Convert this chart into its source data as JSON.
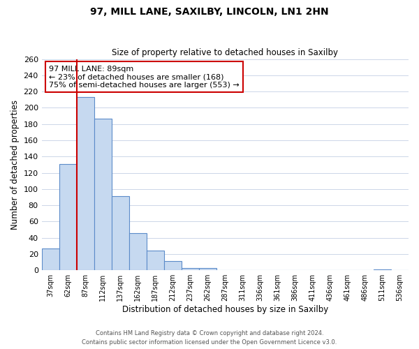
{
  "title": "97, MILL LANE, SAXILBY, LINCOLN, LN1 2HN",
  "subtitle": "Size of property relative to detached houses in Saxilby",
  "xlabel": "Distribution of detached houses by size in Saxilby",
  "ylabel": "Number of detached properties",
  "bin_labels": [
    "37sqm",
    "62sqm",
    "87sqm",
    "112sqm",
    "137sqm",
    "162sqm",
    "187sqm",
    "212sqm",
    "237sqm",
    "262sqm",
    "287sqm",
    "311sqm",
    "336sqm",
    "361sqm",
    "386sqm",
    "411sqm",
    "436sqm",
    "461sqm",
    "486sqm",
    "511sqm",
    "536sqm"
  ],
  "bar_values": [
    27,
    131,
    213,
    187,
    91,
    46,
    24,
    11,
    3,
    3,
    0,
    0,
    0,
    0,
    0,
    0,
    0,
    0,
    0,
    1,
    0
  ],
  "bar_color": "#c6d9f0",
  "bar_edge_color": "#5b8bc9",
  "vline_x": 1.5,
  "vline_color": "#cc0000",
  "annotation_text": "97 MILL LANE: 89sqm\n← 23% of detached houses are smaller (168)\n75% of semi-detached houses are larger (553) →",
  "annotation_box_edgecolor": "#cc0000",
  "annotation_box_facecolor": "white",
  "ylim": [
    0,
    260
  ],
  "yticks": [
    0,
    20,
    40,
    60,
    80,
    100,
    120,
    140,
    160,
    180,
    200,
    220,
    240,
    260
  ],
  "footnote1": "Contains HM Land Registry data © Crown copyright and database right 2024.",
  "footnote2": "Contains public sector information licensed under the Open Government Licence v3.0.",
  "background_color": "#ffffff",
  "grid_color": "#ccd6e8"
}
